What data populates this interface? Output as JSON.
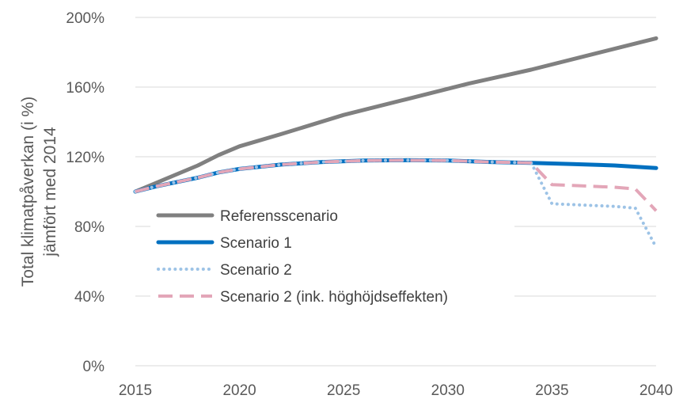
{
  "chart_data": {
    "type": "line",
    "title": "",
    "xlabel": "",
    "ylabel_lines": [
      "Total klimatpåverkan (i %)",
      "jämfört med 2014"
    ],
    "xlim": [
      2015,
      2040
    ],
    "ylim": [
      0,
      200
    ],
    "x_ticks": [
      2015,
      2020,
      2025,
      2030,
      2035,
      2040
    ],
    "x_tick_labels": [
      "2015",
      "2020",
      "2025",
      "2030",
      "2035",
      "2040"
    ],
    "y_ticks": [
      0,
      40,
      80,
      120,
      160,
      200
    ],
    "y_tick_labels": [
      "0%",
      "40%",
      "80%",
      "120%",
      "160%",
      "200%"
    ],
    "grid": "horizontal",
    "legend_position": "lower-left inside plot",
    "series": [
      {
        "name": "Referensscenario",
        "color": "#808080",
        "style": "solid",
        "points": [
          [
            2015,
            100
          ],
          [
            2016,
            105
          ],
          [
            2017,
            110
          ],
          [
            2018,
            115
          ],
          [
            2019,
            121
          ],
          [
            2020,
            126
          ],
          [
            2022,
            133
          ],
          [
            2025,
            144
          ],
          [
            2028,
            153
          ],
          [
            2031,
            162
          ],
          [
            2034,
            170
          ],
          [
            2037,
            179
          ],
          [
            2040,
            188
          ]
        ]
      },
      {
        "name": "Scenario 1",
        "color": "#0070C0",
        "style": "solid",
        "points": [
          [
            2015,
            100
          ],
          [
            2016,
            103
          ],
          [
            2017,
            105.5
          ],
          [
            2018,
            108
          ],
          [
            2019,
            111
          ],
          [
            2020,
            113
          ],
          [
            2022,
            115.5
          ],
          [
            2024,
            117
          ],
          [
            2026,
            117.8
          ],
          [
            2028,
            118
          ],
          [
            2030,
            117.8
          ],
          [
            2032,
            117
          ],
          [
            2034,
            116.5
          ],
          [
            2036,
            115.8
          ],
          [
            2038,
            115
          ],
          [
            2040,
            113.5
          ]
        ]
      },
      {
        "name": "Scenario 2",
        "color": "#9DC3E6",
        "style": "dotted",
        "points": [
          [
            2015,
            100
          ],
          [
            2016,
            103
          ],
          [
            2017,
            105.5
          ],
          [
            2018,
            108
          ],
          [
            2019,
            111
          ],
          [
            2020,
            113
          ],
          [
            2022,
            115.5
          ],
          [
            2024,
            117
          ],
          [
            2026,
            117.8
          ],
          [
            2028,
            118
          ],
          [
            2030,
            117.8
          ],
          [
            2032,
            117
          ],
          [
            2034,
            116.5
          ],
          [
            2035,
            93
          ],
          [
            2036,
            92.5
          ],
          [
            2037,
            92
          ],
          [
            2038,
            91.5
          ],
          [
            2039,
            90.5
          ],
          [
            2040,
            68
          ]
        ]
      },
      {
        "name": "Scenario 2 (ink. höghöjdseffekten)",
        "color": "#E3A6B8",
        "style": "dashed",
        "points": [
          [
            2015,
            100
          ],
          [
            2016,
            103
          ],
          [
            2017,
            105.5
          ],
          [
            2018,
            108
          ],
          [
            2019,
            111
          ],
          [
            2020,
            113
          ],
          [
            2022,
            115.5
          ],
          [
            2024,
            117
          ],
          [
            2026,
            117.8
          ],
          [
            2028,
            118
          ],
          [
            2030,
            117.8
          ],
          [
            2032,
            117
          ],
          [
            2034,
            116.5
          ],
          [
            2035,
            104
          ],
          [
            2036,
            103.5
          ],
          [
            2037,
            103
          ],
          [
            2038,
            102.5
          ],
          [
            2039,
            101.5
          ],
          [
            2040,
            89
          ]
        ]
      }
    ]
  }
}
